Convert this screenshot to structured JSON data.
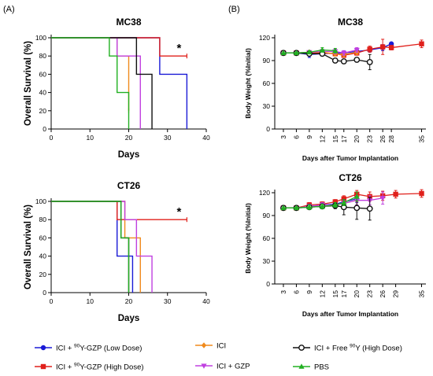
{
  "panel_letters": [
    "(A)",
    "(B)"
  ],
  "colors": {
    "low_dose": "#1a1ad6",
    "high_dose": "#e0201b",
    "ici": "#f08a1c",
    "ici_gzp": "#c040e0",
    "free_y": "#111111",
    "pbs": "#22b022"
  },
  "legend": [
    {
      "key": "low_dose",
      "marker": "circle",
      "pre": "ICI + ",
      "sup": "90",
      "post": "Y-GZP (Low Dose)"
    },
    {
      "key": "high_dose",
      "marker": "square",
      "pre": "ICI + ",
      "sup": "90",
      "post": "Y-GZP (High Dose)"
    },
    {
      "key": "ici",
      "marker": "diamond",
      "pre": "ICI",
      "sup": "",
      "post": ""
    },
    {
      "key": "ici_gzp",
      "marker": "triangle-down",
      "pre": "ICI + GZP",
      "sup": "",
      "post": ""
    },
    {
      "key": "free_y",
      "marker": "open-circle",
      "pre": "ICI + Free ",
      "sup": "90",
      "post": "Y (High Dose)"
    },
    {
      "key": "pbs",
      "marker": "triangle-up",
      "pre": "PBS",
      "sup": "",
      "post": ""
    }
  ],
  "chart_data": [
    {
      "id": "survival-mc38",
      "type": "line",
      "step": true,
      "title": "MC38",
      "xlabel": "Days",
      "ylabel": "Overall Survival (%)",
      "xlim": [
        0,
        40
      ],
      "ylim": [
        0,
        100
      ],
      "xticks": [
        0,
        10,
        20,
        30,
        40
      ],
      "yticks": [
        0,
        20,
        40,
        60,
        80,
        100
      ],
      "annotation": "*",
      "series": [
        {
          "key": "low_dose",
          "x": [
            0,
            28,
            35
          ],
          "y": [
            100,
            60,
            0
          ]
        },
        {
          "key": "high_dose",
          "x": [
            0,
            28,
            35
          ],
          "y": [
            100,
            80,
            80
          ]
        },
        {
          "key": "ici",
          "x": [
            0,
            17,
            20
          ],
          "y": [
            100,
            80,
            20
          ]
        },
        {
          "key": "ici_gzp",
          "x": [
            0,
            17,
            23
          ],
          "y": [
            100,
            80,
            0
          ]
        },
        {
          "key": "free_y",
          "x": [
            0,
            22,
            26
          ],
          "y": [
            100,
            60,
            0
          ]
        },
        {
          "key": "pbs",
          "x": [
            0,
            15,
            17,
            20
          ],
          "y": [
            100,
            80,
            40,
            0
          ]
        }
      ]
    },
    {
      "id": "survival-ct26",
      "type": "line",
      "step": true,
      "title": "CT26",
      "xlabel": "Days",
      "ylabel": "Overall Survival (%)",
      "xlim": [
        0,
        40
      ],
      "ylim": [
        0,
        100
      ],
      "xticks": [
        0,
        10,
        20,
        30,
        40
      ],
      "yticks": [
        0,
        20,
        40,
        60,
        80,
        100
      ],
      "annotation": "*",
      "series": [
        {
          "key": "low_dose",
          "x": [
            0,
            17,
            19,
            21
          ],
          "y": [
            100,
            40,
            40,
            0
          ]
        },
        {
          "key": "high_dose",
          "x": [
            0,
            17,
            35
          ],
          "y": [
            100,
            80,
            80
          ]
        },
        {
          "key": "ici",
          "x": [
            0,
            19,
            23
          ],
          "y": [
            100,
            60,
            0
          ]
        },
        {
          "key": "ici_gzp",
          "x": [
            0,
            19,
            22,
            26
          ],
          "y": [
            100,
            80,
            40,
            0
          ]
        },
        {
          "key": "free_y",
          "x": [
            0,
            18,
            20
          ],
          "y": [
            100,
            60,
            0
          ]
        },
        {
          "key": "pbs",
          "x": [
            0,
            18,
            20
          ],
          "y": [
            100,
            60,
            0
          ]
        }
      ]
    },
    {
      "id": "weight-mc38",
      "type": "line",
      "title": "MC38",
      "xlabel": "Days after Tumor Implantation",
      "ylabel": "Body Weight (%Initial)",
      "xlim": [
        1,
        36
      ],
      "ylim": [
        0,
        120
      ],
      "xticks": [
        3,
        6,
        9,
        12,
        15,
        17,
        20,
        23,
        26,
        28,
        35
      ],
      "yticks": [
        0,
        30,
        60,
        90,
        120
      ],
      "series": [
        {
          "key": "low_dose",
          "x": [
            3,
            6,
            9,
            12,
            15,
            17,
            20,
            23,
            26,
            28
          ],
          "y": [
            100,
            100,
            98,
            99,
            100,
            100,
            102,
            104,
            107,
            112
          ],
          "err": [
            0,
            1,
            4,
            3,
            3,
            3,
            3,
            3,
            4,
            0
          ]
        },
        {
          "key": "high_dose",
          "x": [
            3,
            6,
            9,
            12,
            15,
            17,
            20,
            23,
            26,
            28,
            35
          ],
          "y": [
            100,
            100,
            100,
            100,
            99,
            97,
            100,
            105,
            108,
            107,
            112
          ],
          "err": [
            0,
            1,
            2,
            3,
            3,
            3,
            3,
            4,
            10,
            3,
            5
          ]
        },
        {
          "key": "ici",
          "x": [
            3,
            6,
            9,
            12,
            15,
            17,
            20
          ],
          "y": [
            100,
            100,
            101,
            101,
            99,
            98,
            101
          ],
          "err": [
            0,
            1,
            2,
            3,
            3,
            3,
            3
          ]
        },
        {
          "key": "ici_gzp",
          "x": [
            3,
            6,
            9,
            12,
            15,
            17,
            20
          ],
          "y": [
            100,
            100,
            101,
            102,
            102,
            100,
            104
          ],
          "err": [
            0,
            1,
            2,
            3,
            3,
            3,
            3
          ]
        },
        {
          "key": "free_y",
          "x": [
            3,
            6,
            9,
            12,
            15,
            17,
            20,
            23
          ],
          "y": [
            100,
            100,
            99,
            99,
            90,
            89,
            91,
            88
          ],
          "err": [
            0,
            1,
            2,
            3,
            3,
            3,
            3,
            10
          ]
        },
        {
          "key": "pbs",
          "x": [
            3,
            6,
            9,
            12,
            15
          ],
          "y": [
            100,
            100,
            101,
            104,
            103
          ],
          "err": [
            0,
            1,
            2,
            3,
            3
          ]
        }
      ]
    },
    {
      "id": "weight-ct26",
      "type": "line",
      "title": "CT26",
      "xlabel": "Days after Tumor Implantation",
      "ylabel": "Body Weight (%Initial)",
      "xlim": [
        1,
        36
      ],
      "ylim": [
        0,
        120
      ],
      "xticks": [
        3,
        6,
        9,
        12,
        15,
        17,
        20,
        23,
        26,
        29,
        35
      ],
      "yticks": [
        0,
        30,
        60,
        90,
        120
      ],
      "series": [
        {
          "key": "low_dose",
          "x": [
            3,
            6,
            9,
            12,
            15,
            17,
            20
          ],
          "y": [
            100,
            100,
            102,
            104,
            105,
            108,
            112
          ],
          "err": [
            0,
            1,
            3,
            3,
            3,
            4,
            5
          ]
        },
        {
          "key": "high_dose",
          "x": [
            3,
            6,
            9,
            12,
            15,
            17,
            20,
            23,
            26,
            29,
            35
          ],
          "y": [
            100,
            100,
            104,
            105,
            108,
            112,
            118,
            115,
            116,
            118,
            119
          ],
          "err": [
            0,
            1,
            3,
            3,
            3,
            4,
            5,
            6,
            6,
            5,
            5
          ]
        },
        {
          "key": "ici",
          "x": [
            3,
            6,
            9,
            12,
            15,
            17,
            20
          ],
          "y": [
            100,
            100,
            102,
            102,
            104,
            106,
            110
          ],
          "err": [
            0,
            1,
            3,
            3,
            3,
            4,
            6
          ]
        },
        {
          "key": "ici_gzp",
          "x": [
            3,
            6,
            9,
            12,
            15,
            17,
            20,
            23,
            26
          ],
          "y": [
            100,
            100,
            102,
            104,
            104,
            106,
            110,
            110,
            113
          ],
          "err": [
            0,
            1,
            3,
            3,
            3,
            4,
            6,
            6,
            8
          ]
        },
        {
          "key": "free_y",
          "x": [
            3,
            6,
            9,
            12,
            15,
            17,
            20,
            23
          ],
          "y": [
            100,
            100,
            101,
            102,
            103,
            101,
            100,
            99
          ],
          "err": [
            0,
            1,
            3,
            3,
            4,
            10,
            15,
            15
          ]
        },
        {
          "key": "pbs",
          "x": [
            3,
            6,
            9,
            12,
            15,
            17,
            20
          ],
          "y": [
            100,
            100,
            101,
            102,
            104,
            107,
            115
          ],
          "err": [
            0,
            1,
            3,
            3,
            3,
            4,
            6
          ]
        }
      ]
    }
  ]
}
